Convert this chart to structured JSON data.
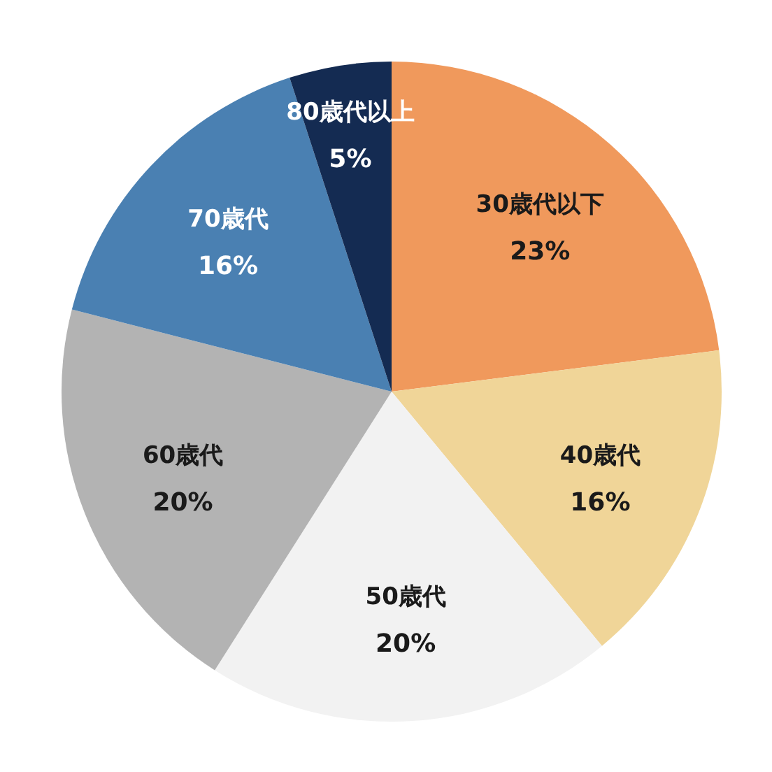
{
  "chart_data": {
    "type": "pie",
    "categories": [
      "30歳代以下",
      "40歳代",
      "50歳代",
      "60歳代",
      "70歳代",
      "80歳代以上"
    ],
    "values": [
      23,
      16,
      20,
      20,
      16,
      5
    ],
    "colors": [
      "#f0995c",
      "#f0d598",
      "#f2f2f2",
      "#b3b3b3",
      "#4a80b2",
      "#142b52"
    ],
    "value_labels": [
      "23%",
      "16%",
      "20%",
      "20%",
      "16%",
      "5%"
    ]
  }
}
